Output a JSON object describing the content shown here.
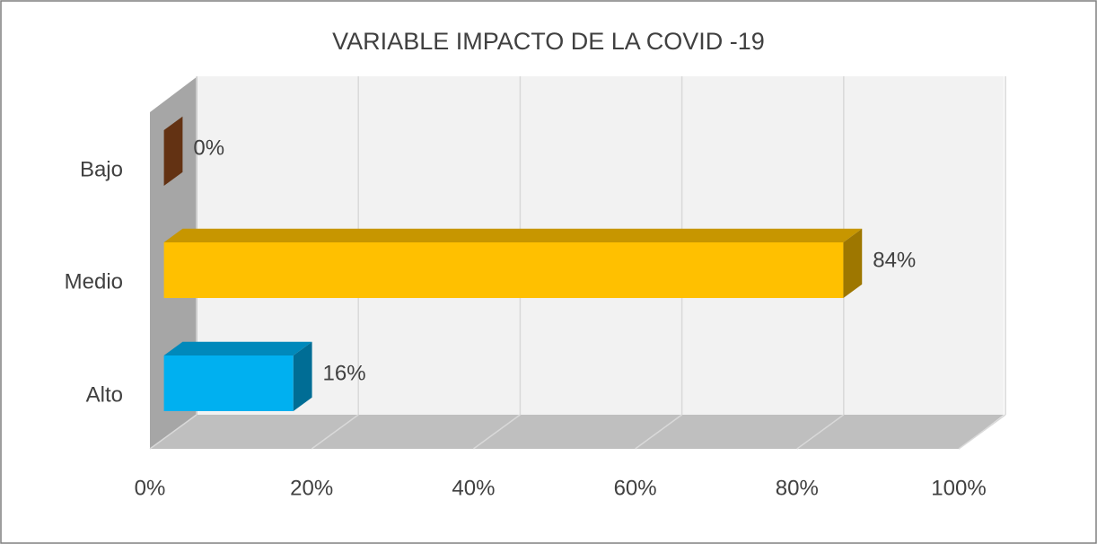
{
  "chart_data": {
    "type": "bar3d_horizontal",
    "title": "VARIABLE IMPACTO DE LA COVID -19",
    "categories": [
      "Bajo",
      "Medio",
      "Alto"
    ],
    "values": [
      0,
      84,
      16
    ],
    "value_labels": [
      "0%",
      "84%",
      "16%"
    ],
    "colors": [
      "#a0501e",
      "#ffc000",
      "#00b0f0"
    ],
    "xlim": [
      0,
      100
    ],
    "xticks": [
      {
        "value": 0,
        "label": "0%"
      },
      {
        "value": 20,
        "label": "20%"
      },
      {
        "value": 40,
        "label": "40%"
      },
      {
        "value": 60,
        "label": "60%"
      },
      {
        "value": 80,
        "label": "80%"
      },
      {
        "value": 100,
        "label": "100%"
      }
    ],
    "grid": true
  }
}
